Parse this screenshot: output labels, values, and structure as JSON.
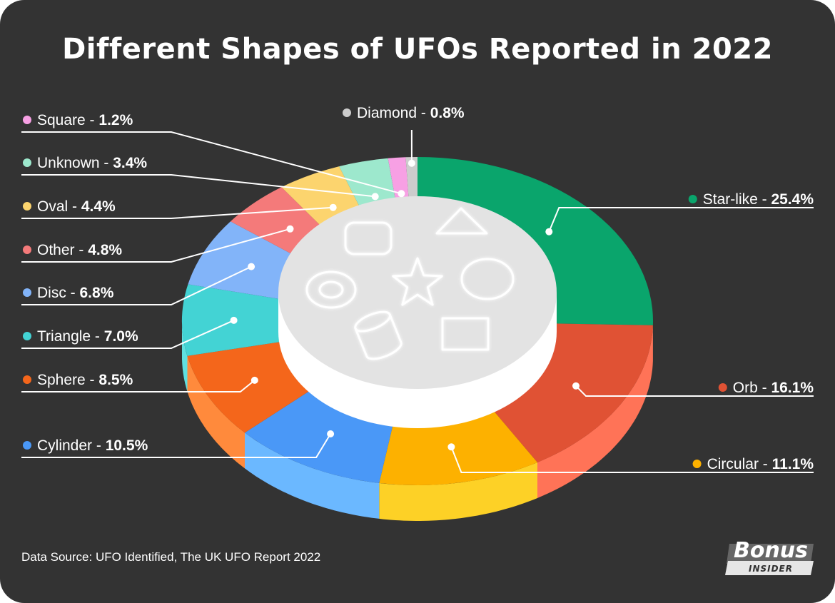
{
  "header": {
    "title": "Different Shapes of UFOs Reported in 2022"
  },
  "footer": {
    "source": "Data Source: UFO Identified, The UK UFO Report 2022"
  },
  "brand": {
    "name": "Bonus",
    "sub": "INSIDER"
  },
  "chart_data": {
    "type": "pie",
    "title": "Different Shapes of UFOs Reported in 2022",
    "categories": [
      "Star-like",
      "Orb",
      "Circular",
      "Cylinder",
      "Sphere",
      "Triangle",
      "Disc",
      "Other",
      "Oval",
      "Unknown",
      "Square",
      "Diamond"
    ],
    "values": [
      25.4,
      16.1,
      11.1,
      10.5,
      8.5,
      7.0,
      6.8,
      4.8,
      4.4,
      3.4,
      1.2,
      0.8
    ],
    "display_values": [
      "25.4%",
      "16.1%",
      "11.1%",
      "10.5%",
      "8.5%",
      "7.0%",
      "6.8%",
      "4.8%",
      "4.4%",
      "3.4%",
      "1.2%",
      "0.8%"
    ],
    "colors": [
      "#0aa56c",
      "#e05234",
      "#fdb100",
      "#4a98f7",
      "#f4661b",
      "#43d3d4",
      "#82b4f9",
      "#f47a7a",
      "#fcd46e",
      "#9de8cd",
      "#f7a0e4",
      "#cccccc"
    ],
    "side_colors": [
      "#099a64",
      "#ff7357",
      "#fdd126",
      "#6bb8ff",
      "#ff8a3c",
      "#5fe0e0",
      "#9cc6fb",
      "#f79595",
      "#fde08f",
      "#b6efd9",
      "#f8b8ea",
      "#dddddd"
    ],
    "center_icons": [
      "rounded-square-icon",
      "triangle-icon",
      "ring-icon",
      "star-icon",
      "circle-icon",
      "cylinder-icon",
      "square-icon"
    ],
    "legend_placement": "both sides",
    "label_separator": " - "
  }
}
